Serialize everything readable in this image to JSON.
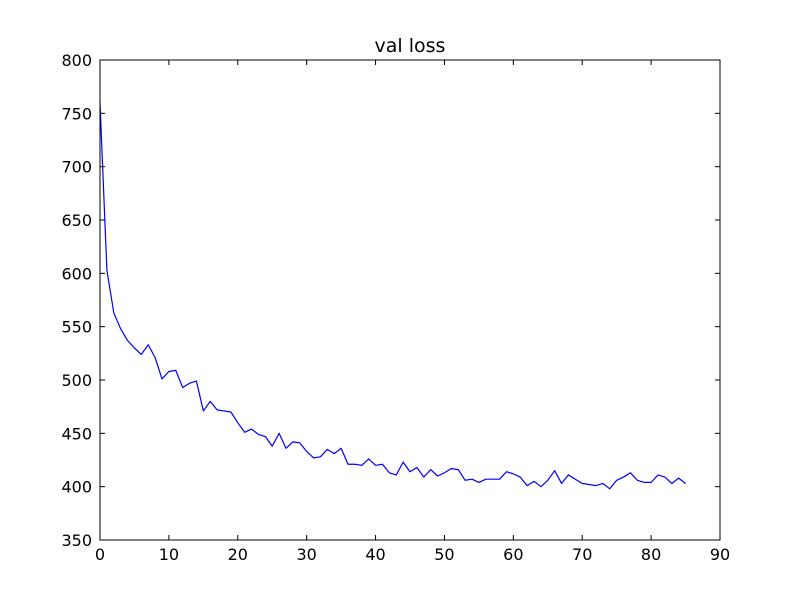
{
  "chart_data": {
    "type": "line",
    "title": "val loss",
    "xlabel": "",
    "ylabel": "",
    "xlim": [
      0,
      90
    ],
    "ylim": [
      350,
      800
    ],
    "xticks": [
      0,
      10,
      20,
      30,
      40,
      50,
      60,
      70,
      80,
      90
    ],
    "yticks": [
      350,
      400,
      450,
      500,
      550,
      600,
      650,
      700,
      750,
      800
    ],
    "grid": false,
    "legend": "none",
    "series": [
      {
        "name": "",
        "color": "#0000ff",
        "x": [
          0,
          1,
          2,
          3,
          4,
          5,
          6,
          7,
          8,
          9,
          10,
          11,
          12,
          13,
          14,
          15,
          16,
          17,
          18,
          19,
          20,
          21,
          22,
          23,
          24,
          25,
          26,
          27,
          28,
          29,
          30,
          31,
          32,
          33,
          34,
          35,
          36,
          37,
          38,
          39,
          40,
          41,
          42,
          43,
          44,
          45,
          46,
          47,
          48,
          49,
          50,
          51,
          52,
          53,
          54,
          55,
          56,
          57,
          58,
          59,
          60,
          61,
          62,
          63,
          64,
          65,
          66,
          67,
          68,
          69,
          70,
          71,
          72,
          73,
          74,
          75,
          76,
          77,
          78,
          79,
          80,
          81,
          82,
          83,
          84,
          85
        ],
        "values": [
          760,
          603,
          563,
          548,
          537,
          530,
          524,
          533,
          521,
          501,
          508,
          509,
          493,
          497,
          499,
          471,
          480,
          472,
          471,
          470,
          460,
          451,
          454,
          449,
          447,
          438,
          450,
          436,
          442,
          441,
          433,
          427,
          428,
          435,
          431,
          436,
          421,
          421,
          420,
          426,
          420,
          421,
          413,
          411,
          423,
          414,
          418,
          409,
          416,
          410,
          413,
          417,
          416,
          406,
          407,
          404,
          407,
          407,
          407,
          414,
          412,
          409,
          401,
          405,
          400,
          406,
          415,
          403,
          411,
          407,
          403,
          402,
          401,
          403,
          398,
          406,
          409,
          413,
          406,
          404,
          404,
          411,
          409,
          403,
          408,
          403
        ]
      }
    ]
  }
}
